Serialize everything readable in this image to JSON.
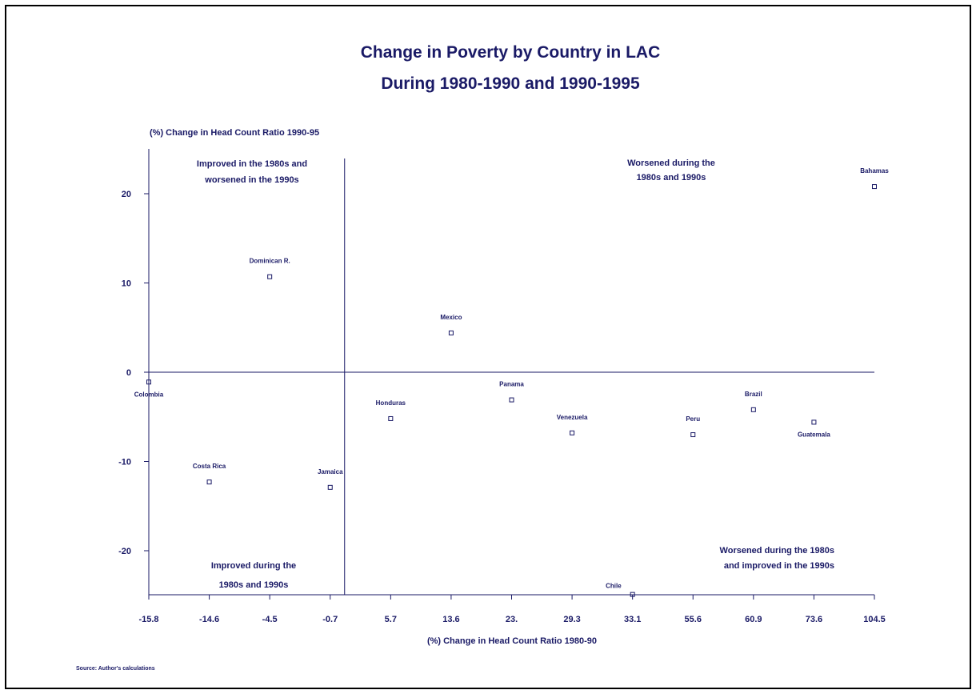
{
  "chart_data": {
    "type": "scatter",
    "title_lines": [
      "Change in Poverty by Country in LAC",
      "During 1980-1990 and 1990-1995"
    ],
    "ylabel": "(%) Change in Head Count Ratio 1990-95",
    "xlabel": "(%) Change in Head Count Ratio 1980-90",
    "source": "Source: Author's calculations",
    "x_ticks": [
      "-15.8",
      "-14.6",
      "-4.5",
      "-0.7",
      "5.7",
      "13.6",
      "23.",
      "29.3",
      "33.1",
      "55.6",
      "60.9",
      "73.6",
      "104.5"
    ],
    "y_ticks": [
      20,
      10,
      0,
      -10,
      -20
    ],
    "ylim": [
      -25,
      25
    ],
    "quadrant_labels": {
      "top_left": [
        "Improved in the 1980s and",
        "worsened in the 1990s"
      ],
      "top_right": [
        "Worsened during the",
        "1980s and 1990s"
      ],
      "bottom_left": [
        "Improved during the",
        "1980s and 1990s"
      ],
      "bottom_right": [
        "Worsened during the 1980s",
        "and improved in the 1990s"
      ]
    },
    "points": [
      {
        "name": "Colombia",
        "x": -15.8,
        "y": -1.1,
        "label_pos": "below"
      },
      {
        "name": "Costa Rica",
        "x": -14.6,
        "y": -12.3,
        "label_pos": "above"
      },
      {
        "name": "Dominican R.",
        "x": -4.5,
        "y": 10.7,
        "label_pos": "above"
      },
      {
        "name": "Jamaica",
        "x": -0.7,
        "y": -12.9,
        "label_pos": "above"
      },
      {
        "name": "Honduras",
        "x": 5.7,
        "y": -5.2,
        "label_pos": "above"
      },
      {
        "name": "Mexico",
        "x": 13.6,
        "y": 4.4,
        "label_pos": "above"
      },
      {
        "name": "Panama",
        "x": 23.0,
        "y": -3.1,
        "label_pos": "above"
      },
      {
        "name": "Venezuela",
        "x": 29.3,
        "y": -6.8,
        "label_pos": "above"
      },
      {
        "name": "Chile",
        "x": 33.1,
        "y": -24.9,
        "label_pos": "above-left"
      },
      {
        "name": "Peru",
        "x": 55.6,
        "y": -7.0,
        "label_pos": "above"
      },
      {
        "name": "Brazil",
        "x": 60.9,
        "y": -4.2,
        "label_pos": "above"
      },
      {
        "name": "Guatemala",
        "x": 73.6,
        "y": -5.6,
        "label_pos": "below"
      },
      {
        "name": "Bahamas",
        "x": 104.5,
        "y": 20.8,
        "label_pos": "above"
      }
    ],
    "colors": {
      "ink": "#1a1a66"
    }
  }
}
